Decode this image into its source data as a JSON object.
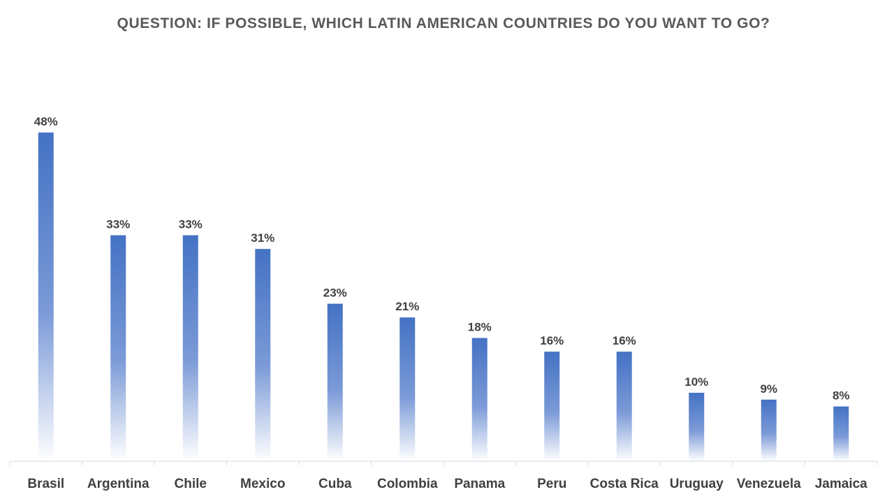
{
  "chart_data": {
    "type": "bar",
    "title": "QUESTION: IF POSSIBLE, WHICH LATIN AMERICAN COUNTRIES DO YOU WANT TO GO?",
    "xlabel": "",
    "ylabel": "",
    "categories": [
      "Brasil",
      "Argentina",
      "Chile",
      "Mexico",
      "Cuba",
      "Colombia",
      "Panama",
      "Peru",
      "Costa Rica",
      "Uruguay",
      "Venezuela",
      "Jamaica"
    ],
    "values": [
      48,
      33,
      33,
      31,
      23,
      21,
      18,
      16,
      16,
      10,
      9,
      8
    ],
    "value_labels": [
      "48%",
      "33%",
      "33%",
      "31%",
      "23%",
      "21%",
      "18%",
      "16%",
      "16%",
      "10%",
      "9%",
      "8%"
    ],
    "unit": "%",
    "ylim": [
      0,
      50
    ],
    "grid": false,
    "legend": "none",
    "colors": {
      "bar_top": "#4472c4",
      "bar_bottom": "#ffffff",
      "axis": "#d9d9d9",
      "title": "#595959",
      "labels": "#404040"
    }
  }
}
